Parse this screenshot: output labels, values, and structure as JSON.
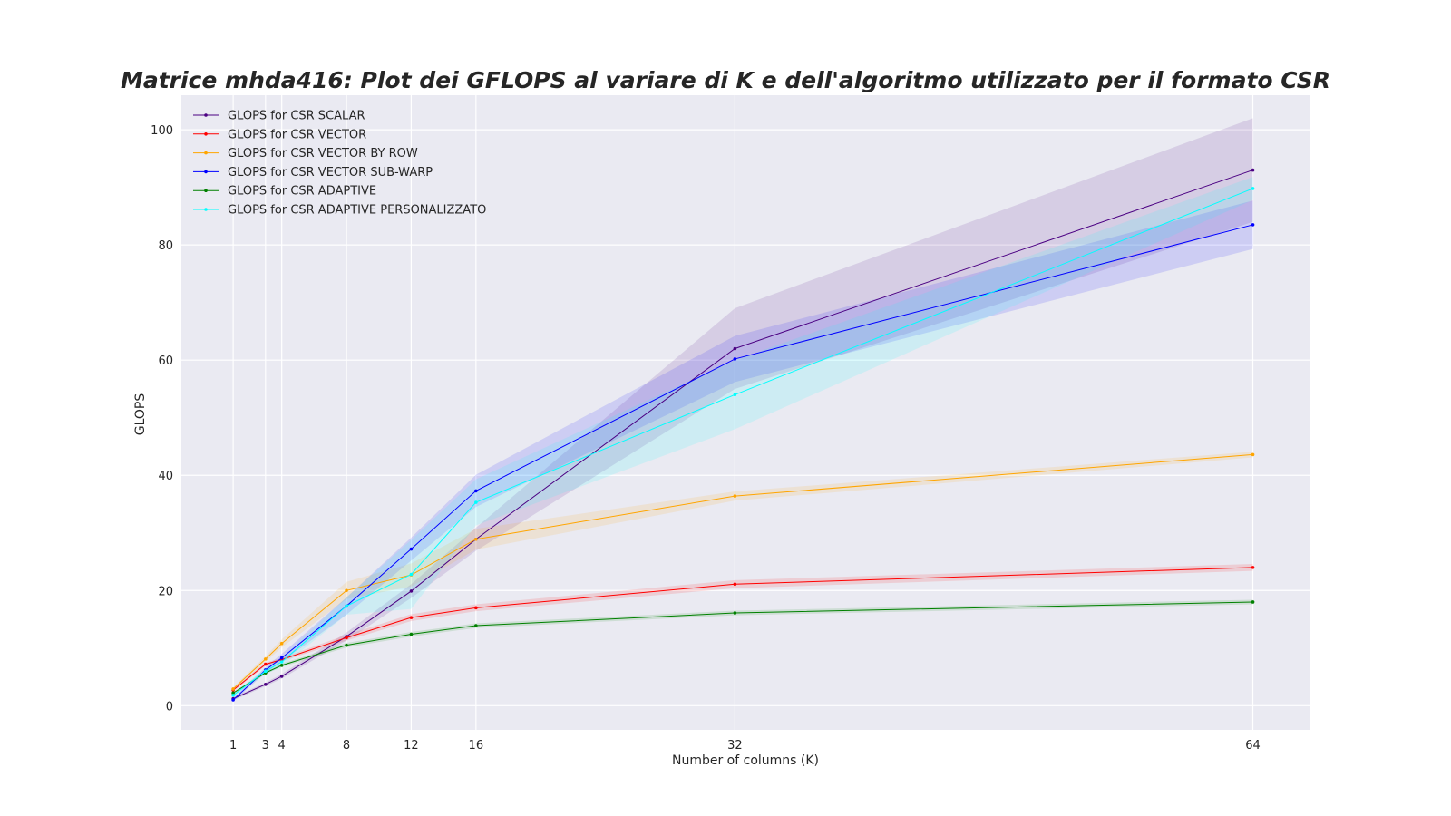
{
  "chart_data": {
    "type": "line",
    "title": "Matrice mhda416: Plot dei GFLOPS al variare di K e dell'algoritmo utilizzato per il formato CSR",
    "xlabel": "Number of columns (K)",
    "ylabel": "GLOPS",
    "x": [
      1,
      3,
      4,
      8,
      12,
      16,
      32,
      64
    ],
    "xticks": [
      1,
      3,
      4,
      8,
      12,
      16,
      32,
      64
    ],
    "yticks": [
      0,
      20,
      40,
      60,
      80,
      100
    ],
    "xlim": [
      -2.2,
      67.5
    ],
    "ylim": [
      -4.2,
      106
    ],
    "grid": true,
    "legend_position": "top-left",
    "series": [
      {
        "name": "GLOPS for CSR SCALAR",
        "color": "#4b0082",
        "values": [
          1.2,
          3.7,
          5.1,
          12.0,
          19.9,
          28.9,
          62.0,
          93.0
        ],
        "band": [
          0.3,
          0.3,
          0.4,
          0.7,
          1.2,
          2.0,
          7.0,
          9.0
        ]
      },
      {
        "name": "GLOPS for CSR VECTOR",
        "color": "#ff0000",
        "values": [
          2.7,
          7.2,
          8.0,
          11.8,
          15.3,
          17.0,
          21.1,
          24.0
        ],
        "band": [
          0.2,
          0.3,
          0.3,
          0.5,
          0.6,
          0.6,
          0.7,
          0.6
        ]
      },
      {
        "name": "GLOPS for CSR VECTOR BY ROW",
        "color": "#ffa500",
        "values": [
          2.9,
          8.1,
          10.8,
          20.0,
          22.7,
          28.9,
          36.4,
          43.6
        ],
        "band": [
          0.3,
          0.5,
          0.7,
          1.5,
          2.0,
          1.8,
          0.8,
          0.5
        ]
      },
      {
        "name": "GLOPS for CSR VECTOR SUB-WARP",
        "color": "#0000ff",
        "values": [
          1.0,
          6.2,
          8.3,
          17.3,
          27.2,
          37.3,
          60.2,
          83.5
        ],
        "band": [
          0.3,
          0.5,
          0.7,
          1.5,
          2.0,
          2.8,
          4.0,
          4.2
        ]
      },
      {
        "name": "GLOPS for CSR ADAPTIVE",
        "color": "#008000",
        "values": [
          2.2,
          5.7,
          7.0,
          10.5,
          12.4,
          13.9,
          16.1,
          18.0
        ],
        "band": [
          0.2,
          0.2,
          0.3,
          0.4,
          0.4,
          0.4,
          0.4,
          0.4
        ]
      },
      {
        "name": "GLOPS for CSR ADAPTIVE PERSONALIZZATO",
        "color": "#00ffff",
        "values": [
          1.8,
          6.0,
          7.6,
          17.3,
          22.8,
          35.3,
          54.0,
          89.8
        ],
        "band": [
          0.3,
          0.5,
          0.8,
          1.5,
          6.0,
          4.0,
          6.0,
          2.0
        ]
      }
    ]
  }
}
